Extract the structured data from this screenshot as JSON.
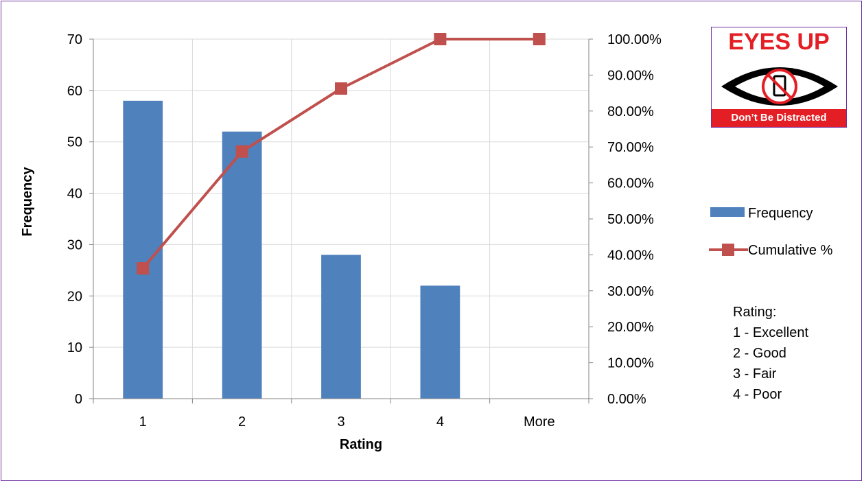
{
  "chart_data": {
    "type": "bar",
    "categories": [
      "1",
      "2",
      "3",
      "4",
      "More"
    ],
    "series": [
      {
        "name": "Frequency",
        "type": "bar",
        "axis": "left",
        "values": [
          58,
          52,
          28,
          22,
          0
        ],
        "color": "#4f81bd"
      },
      {
        "name": "Cumulative %",
        "type": "line",
        "axis": "right",
        "values": [
          36.25,
          68.75,
          86.25,
          100,
          100
        ],
        "color": "#c0504d"
      }
    ],
    "xlabel": "Rating",
    "ylabel": "Frequency",
    "ylim": [
      0,
      70
    ],
    "y_ticks": [
      "0",
      "10",
      "20",
      "30",
      "40",
      "50",
      "60",
      "70"
    ],
    "y2lim": [
      0,
      100
    ],
    "y2_ticks": [
      "0.00%",
      "10.00%",
      "20.00%",
      "30.00%",
      "40.00%",
      "50.00%",
      "60.00%",
      "70.00%",
      "80.00%",
      "90.00%",
      "100.00%"
    ],
    "grid": true,
    "legend_position": "right"
  },
  "rating_note": {
    "title": "Rating:",
    "items": [
      "1 - Excellent",
      "2 - Good",
      "3 - Fair",
      "4 - Poor"
    ]
  },
  "logo": {
    "title": "EYES UP",
    "subtitle": "Don’t Be Distracted"
  }
}
